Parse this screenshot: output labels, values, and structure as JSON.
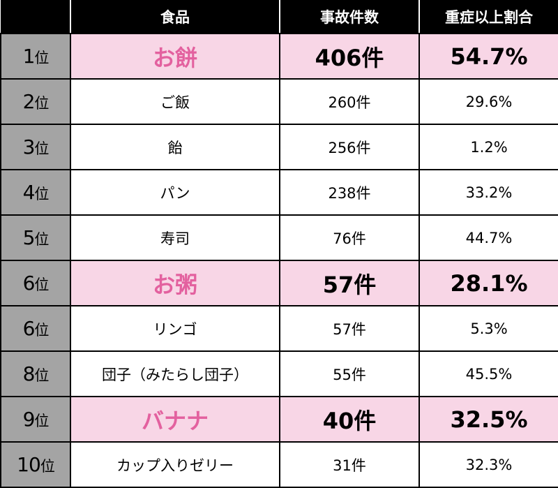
{
  "header": {
    "food": "食品",
    "count": "事故件数",
    "ratio": "重症以上割合"
  },
  "rows": [
    {
      "rank": "1",
      "suffix": "位",
      "food": "お餅",
      "count": "406件",
      "ratio": "54.7%",
      "highlight": true
    },
    {
      "rank": "2",
      "suffix": "位",
      "food": "ご飯",
      "count": "260件",
      "ratio": "29.6%",
      "highlight": false
    },
    {
      "rank": "3",
      "suffix": "位",
      "food": "飴",
      "count": "256件",
      "ratio": "1.2%",
      "highlight": false
    },
    {
      "rank": "4",
      "suffix": "位",
      "food": "パン",
      "count": "238件",
      "ratio": "33.2%",
      "highlight": false
    },
    {
      "rank": "5",
      "suffix": "位",
      "food": "寿司",
      "count": "76件",
      "ratio": "44.7%",
      "highlight": false
    },
    {
      "rank": "6",
      "suffix": "位",
      "food": "お粥",
      "count": "57件",
      "ratio": "28.1%",
      "highlight": true
    },
    {
      "rank": "6",
      "suffix": "位",
      "food": "リンゴ",
      "count": "57件",
      "ratio": "5.3%",
      "highlight": false
    },
    {
      "rank": "8",
      "suffix": "位",
      "food": "団子（みたらし団子）",
      "count": "55件",
      "ratio": "45.5%",
      "highlight": false
    },
    {
      "rank": "9",
      "suffix": "位",
      "food": "バナナ",
      "count": "40件",
      "ratio": "32.5%",
      "highlight": true
    },
    {
      "rank": "10",
      "suffix": "位",
      "food": "カップ入りゼリー",
      "count": "31件",
      "ratio": "32.3%",
      "highlight": false
    }
  ],
  "colors": {
    "header_bg": "#000000",
    "rank_bg": "#a4a4a4",
    "highlight_bg": "#f8d6e6",
    "highlight_text": "#e3619f"
  }
}
